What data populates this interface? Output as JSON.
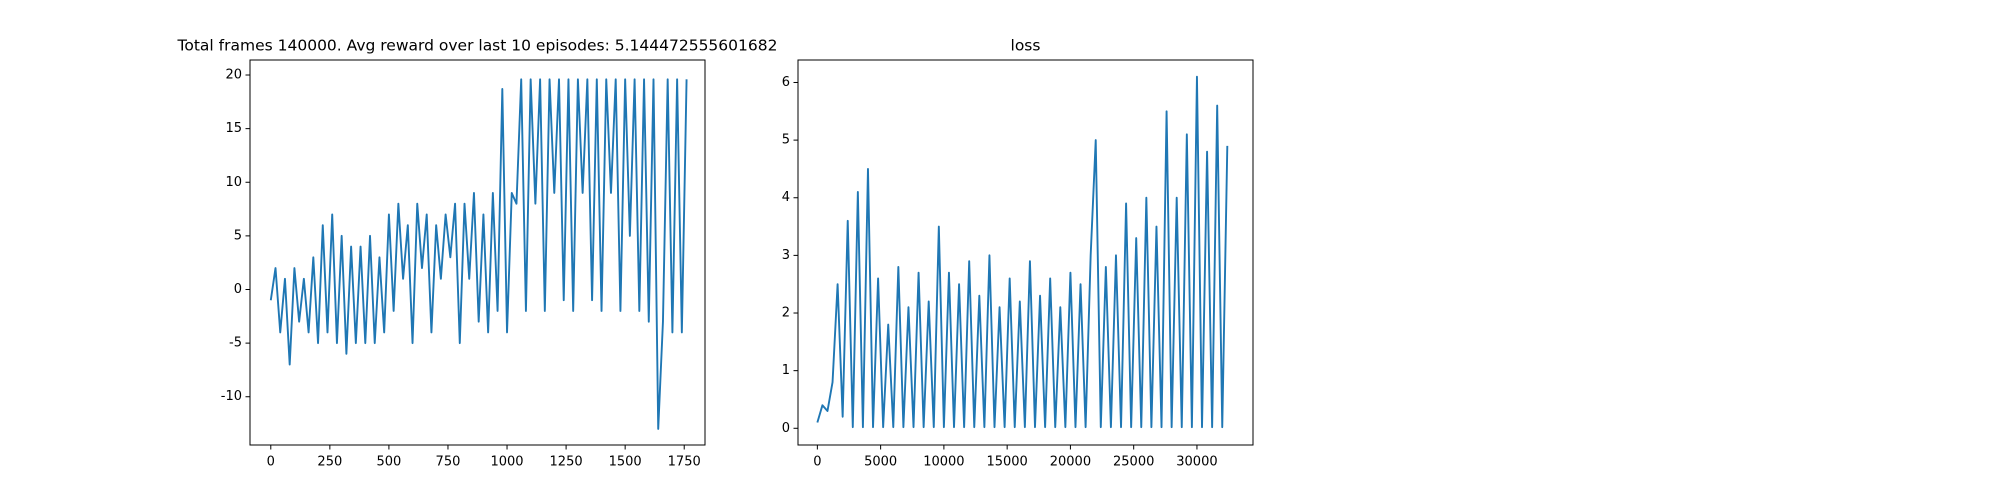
{
  "chart_data": [
    {
      "type": "line",
      "title": "Total frames 140000. Avg reward over last 10 episodes: 5.144472555601682",
      "x": [
        0,
        20,
        40,
        60,
        80,
        100,
        120,
        140,
        160,
        180,
        200,
        220,
        240,
        260,
        280,
        300,
        320,
        340,
        360,
        380,
        400,
        420,
        440,
        460,
        480,
        500,
        520,
        540,
        560,
        580,
        600,
        620,
        640,
        660,
        680,
        700,
        720,
        740,
        760,
        780,
        800,
        820,
        840,
        860,
        880,
        900,
        920,
        940,
        960,
        980,
        1000,
        1020,
        1040,
        1060,
        1080,
        1100,
        1120,
        1140,
        1160,
        1180,
        1200,
        1220,
        1240,
        1260,
        1280,
        1300,
        1320,
        1340,
        1360,
        1380,
        1400,
        1420,
        1440,
        1460,
        1480,
        1500,
        1520,
        1540,
        1560,
        1580,
        1600,
        1620,
        1640,
        1660,
        1680,
        1700,
        1720,
        1740,
        1760
      ],
      "series": [
        {
          "color": "#1f77b4",
          "values": [
            -1,
            2,
            -4,
            1,
            -7,
            2,
            -3,
            1,
            -4,
            3,
            -5,
            6,
            -4,
            7,
            -5,
            5,
            -6,
            4,
            -5,
            4,
            -5,
            5,
            -5,
            3,
            -4,
            7,
            -2,
            8,
            1,
            6,
            -5,
            8,
            2,
            7,
            -4,
            6,
            1,
            7,
            3,
            8,
            -5,
            8,
            1,
            9,
            -3,
            7,
            -4,
            9,
            -2,
            18.7,
            -4,
            9,
            8,
            19.6,
            -2,
            19.6,
            8,
            19.6,
            -2,
            19.6,
            9,
            19.6,
            -1,
            19.6,
            -2,
            19.6,
            9,
            19.6,
            -1,
            19.6,
            -2,
            19.6,
            9,
            19.6,
            -2,
            19.6,
            5,
            19.6,
            -2,
            19.6,
            -3,
            19.6,
            -13,
            -3,
            19.6,
            -4,
            19.6,
            -4,
            19.6
          ]
        }
      ],
      "xlim": [
        -88,
        1838
      ],
      "xticks": [
        0,
        250,
        500,
        750,
        1000,
        1250,
        1500,
        1750
      ],
      "ylim": [
        -14.5,
        21.4
      ],
      "yticks": [
        -10,
        -5,
        0,
        5,
        10,
        15,
        20
      ]
    },
    {
      "type": "line",
      "title": "loss",
      "x": [
        0,
        400,
        800,
        1200,
        1600,
        2000,
        2400,
        2800,
        3200,
        3600,
        4000,
        4400,
        4800,
        5200,
        5600,
        6000,
        6400,
        6800,
        7200,
        7600,
        8000,
        8400,
        8800,
        9200,
        9600,
        10000,
        10400,
        10800,
        11200,
        11600,
        12000,
        12400,
        12800,
        13200,
        13600,
        14000,
        14400,
        14800,
        15200,
        15600,
        16000,
        16400,
        16800,
        17200,
        17600,
        18000,
        18400,
        18800,
        19200,
        19600,
        20000,
        20400,
        20800,
        21200,
        21600,
        22000,
        22400,
        22800,
        23200,
        23600,
        24000,
        24400,
        24800,
        25200,
        25600,
        26000,
        26400,
        26800,
        27200,
        27600,
        28000,
        28400,
        28800,
        29200,
        29600,
        30000,
        30400,
        30800,
        31200,
        31600,
        32000,
        32400
      ],
      "series": [
        {
          "color": "#1f77b4",
          "values": [
            0.1,
            0.4,
            0.3,
            0.8,
            2.5,
            0.2,
            3.6,
            0.02,
            4.1,
            0.02,
            4.5,
            0.02,
            2.6,
            0.02,
            1.8,
            0.02,
            2.8,
            0.02,
            2.1,
            0.02,
            2.7,
            0.02,
            2.2,
            0.02,
            3.5,
            0.02,
            2.7,
            0.02,
            2.5,
            0.02,
            2.9,
            0.02,
            2.3,
            0.02,
            3.0,
            0.02,
            2.1,
            0.02,
            2.6,
            0.02,
            2.2,
            0.02,
            2.9,
            0.02,
            2.3,
            0.02,
            2.6,
            0.02,
            2.1,
            0.02,
            2.7,
            0.02,
            2.5,
            0.02,
            3.0,
            5.0,
            0.02,
            2.8,
            0.02,
            3.0,
            0.02,
            3.9,
            0.02,
            3.3,
            0.02,
            4.0,
            0.02,
            3.5,
            0.02,
            5.5,
            0.02,
            4.0,
            0.02,
            5.1,
            0.02,
            6.1,
            0.02,
            4.8,
            0.02,
            5.6,
            0.02,
            4.9
          ]
        }
      ],
      "xlim": [
        -1530,
        34430
      ],
      "xticks": [
        0,
        5000,
        10000,
        15000,
        20000,
        25000,
        30000
      ],
      "ylim": [
        -0.29,
        6.39
      ],
      "yticks": [
        0,
        1,
        2,
        3,
        4,
        5,
        6
      ]
    }
  ]
}
